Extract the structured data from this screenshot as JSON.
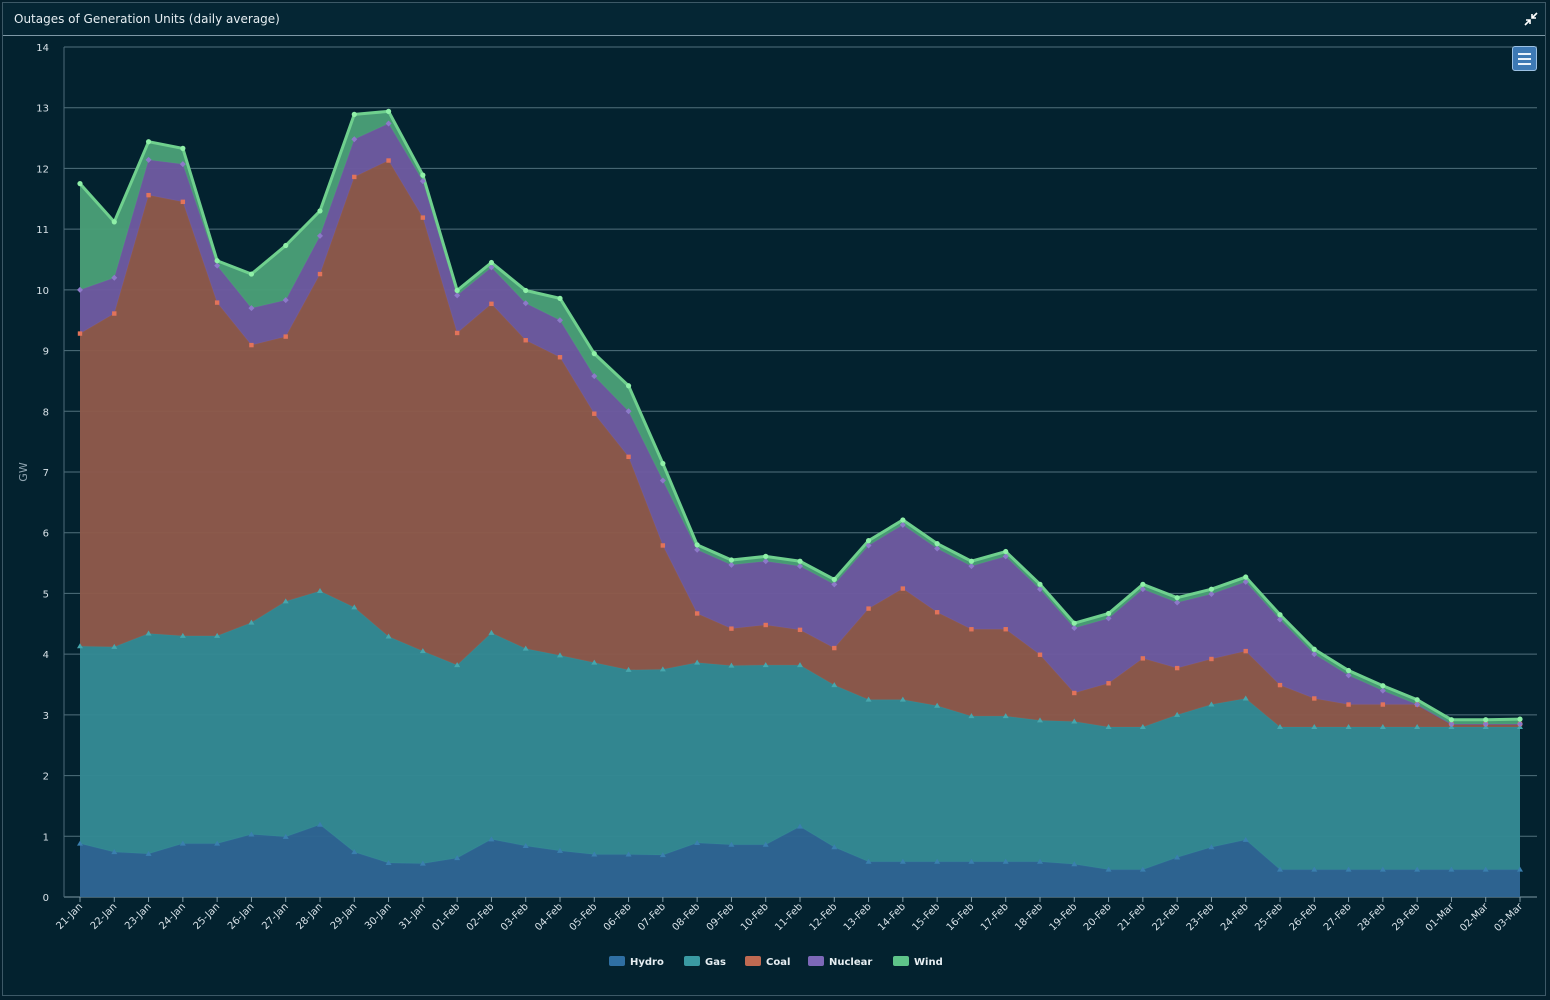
{
  "panel": {
    "title": "Outages of Generation Units (daily average)"
  },
  "chart_data": {
    "type": "area",
    "stacked": true,
    "title": "",
    "xlabel": "",
    "ylabel": "GW",
    "ylim": [
      0,
      14
    ],
    "yticks": [
      0,
      1,
      2,
      3,
      4,
      5,
      6,
      7,
      8,
      9,
      10,
      11,
      12,
      13,
      14
    ],
    "grid": true,
    "legend": "bottom-center",
    "categories": [
      "21-Jan",
      "22-Jan",
      "23-Jan",
      "24-Jan",
      "25-Jan",
      "26-Jan",
      "27-Jan",
      "28-Jan",
      "29-Jan",
      "30-Jan",
      "31-Jan",
      "01-Feb",
      "02-Feb",
      "03-Feb",
      "04-Feb",
      "05-Feb",
      "06-Feb",
      "07-Feb",
      "08-Feb",
      "09-Feb",
      "10-Feb",
      "11-Feb",
      "12-Feb",
      "13-Feb",
      "14-Feb",
      "15-Feb",
      "16-Feb",
      "17-Feb",
      "18-Feb",
      "19-Feb",
      "20-Feb",
      "21-Feb",
      "22-Feb",
      "23-Feb",
      "24-Feb",
      "25-Feb",
      "26-Feb",
      "27-Feb",
      "28-Feb",
      "29-Feb",
      "01-Mar",
      "02-Mar",
      "03-Mar"
    ],
    "series": [
      {
        "name": "Hydro",
        "color": "#2f6694",
        "values": [
          0.88,
          0.74,
          0.71,
          0.88,
          0.88,
          1.03,
          0.99,
          1.19,
          0.74,
          0.56,
          0.55,
          0.64,
          0.95,
          0.84,
          0.76,
          0.7,
          0.7,
          0.69,
          0.89,
          0.86,
          0.86,
          1.16,
          0.82,
          0.58,
          0.58,
          0.58,
          0.58,
          0.58,
          0.58,
          0.54,
          0.45,
          0.45,
          0.65,
          0.82,
          0.94,
          0.45,
          0.45,
          0.45,
          0.45,
          0.45,
          0.45,
          0.45,
          0.45
        ]
      },
      {
        "name": "Gas",
        "color": "#348a94",
        "values": [
          3.25,
          3.38,
          3.63,
          3.42,
          3.42,
          3.49,
          3.88,
          3.85,
          4.03,
          3.73,
          3.5,
          3.18,
          3.4,
          3.25,
          3.22,
          3.16,
          3.04,
          3.06,
          2.97,
          2.95,
          2.96,
          2.66,
          2.67,
          2.67,
          2.67,
          2.57,
          2.4,
          2.4,
          2.33,
          2.35,
          2.35,
          2.35,
          2.35,
          2.35,
          2.33,
          2.35,
          2.35,
          2.35,
          2.35,
          2.35,
          2.35,
          2.35,
          2.35
        ]
      },
      {
        "name": "Coal",
        "color": "#8f5a4b",
        "values": [
          5.15,
          5.49,
          7.22,
          7.15,
          5.49,
          4.57,
          4.36,
          5.22,
          7.09,
          7.84,
          7.14,
          5.47,
          5.42,
          5.08,
          4.91,
          4.1,
          3.51,
          2.04,
          0.81,
          0.61,
          0.66,
          0.58,
          0.61,
          1.5,
          1.83,
          1.54,
          1.43,
          1.43,
          1.08,
          0.47,
          0.72,
          1.13,
          0.77,
          0.75,
          0.78,
          0.69,
          0.47,
          0.37,
          0.37,
          0.37,
          0.05,
          0.05,
          0.05
        ]
      },
      {
        "name": "Nuclear",
        "color": "#6e5ba0",
        "values": [
          0.72,
          0.59,
          0.58,
          0.62,
          0.61,
          0.61,
          0.6,
          0.63,
          0.62,
          0.61,
          0.6,
          0.62,
          0.6,
          0.61,
          0.61,
          0.62,
          0.75,
          1.07,
          1.05,
          1.05,
          1.05,
          1.05,
          1.05,
          1.04,
          1.05,
          1.05,
          1.04,
          1.2,
          1.08,
          1.07,
          1.07,
          1.14,
          1.08,
          1.07,
          1.14,
          1.08,
          0.73,
          0.48,
          0.23,
          0.0,
          0.0,
          0.0,
          0.0
        ]
      },
      {
        "name": "Wind",
        "color": "#4a9f77",
        "values": [
          1.75,
          0.92,
          0.3,
          0.26,
          0.08,
          0.56,
          0.9,
          0.41,
          0.41,
          0.2,
          0.1,
          0.08,
          0.08,
          0.21,
          0.36,
          0.37,
          0.42,
          0.28,
          0.08,
          0.08,
          0.08,
          0.08,
          0.08,
          0.08,
          0.08,
          0.08,
          0.08,
          0.08,
          0.08,
          0.08,
          0.08,
          0.08,
          0.08,
          0.08,
          0.08,
          0.08,
          0.08,
          0.08,
          0.08,
          0.08,
          0.07,
          0.07,
          0.08
        ]
      }
    ]
  }
}
